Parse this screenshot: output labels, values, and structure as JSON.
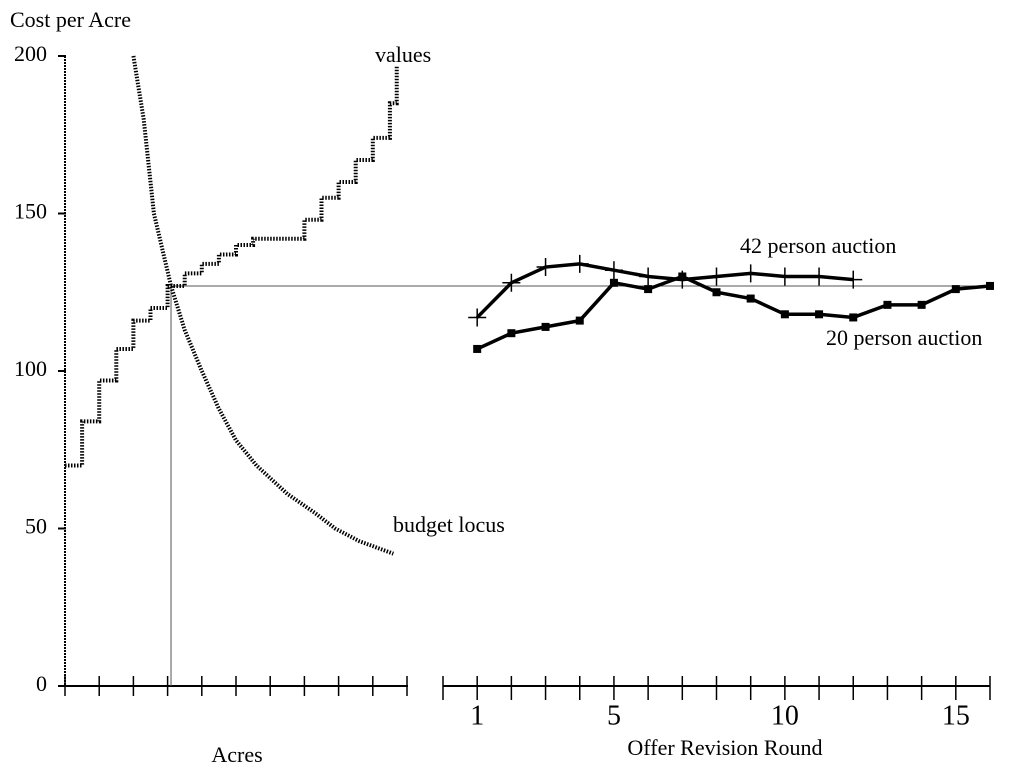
{
  "chart_data": [
    {
      "type": "line",
      "y_label": "Cost per Acre",
      "x_label": "Acres",
      "xlim": [
        0,
        10
      ],
      "xticks": [
        0,
        1,
        2,
        3,
        4,
        5,
        6,
        7,
        8,
        9,
        10
      ],
      "ylim": [
        0,
        200
      ],
      "yticks": [
        0,
        50,
        100,
        150,
        200
      ],
      "hline": 127,
      "vline": 3.1,
      "series": [
        {
          "name": "values",
          "color": "#000000",
          "step": true,
          "x": [
            0,
            0.5,
            1,
            1.5,
            2,
            2.5,
            3,
            3.5,
            4,
            4.5,
            5,
            5.5,
            6,
            6.5,
            7,
            7.5,
            8,
            8.5,
            9,
            9.5,
            9.7
          ],
          "values": [
            70,
            84,
            97,
            107,
            116,
            120,
            127,
            131,
            134,
            137,
            140,
            142,
            142,
            142,
            148,
            155,
            160,
            167,
            174,
            185,
            197
          ]
        },
        {
          "name": "budget locus",
          "color": "#000000",
          "step": false,
          "x": [
            2,
            2.3,
            2.6,
            3.1,
            3.5,
            4,
            4.5,
            5,
            5.6,
            6.5,
            7.3,
            7.9,
            8.6,
            9.6
          ],
          "values": [
            200,
            180,
            150,
            127,
            113,
            100,
            88,
            78,
            70,
            61,
            55,
            50,
            46,
            42
          ]
        }
      ]
    },
    {
      "type": "line",
      "x_label": "Offer Revision Round",
      "xlim": [
        0,
        16
      ],
      "xticks": [
        1,
        5,
        10,
        15
      ],
      "minor_xticks": [
        0,
        1,
        2,
        3,
        4,
        5,
        6,
        7,
        8,
        9,
        10,
        11,
        12,
        13,
        14,
        15,
        16
      ],
      "ylim": [
        0,
        200
      ],
      "series": [
        {
          "name": "42 person auction",
          "color": "#000000",
          "marker": "plus",
          "x": [
            1,
            2,
            3,
            4,
            5,
            6,
            7,
            8,
            9,
            10,
            11,
            12
          ],
          "values": [
            117,
            128,
            133,
            134,
            132,
            130,
            129,
            130,
            131,
            130,
            130,
            129
          ]
        },
        {
          "name": "20 person auction",
          "color": "#000000",
          "marker": "square",
          "x": [
            1,
            2,
            3,
            4,
            5,
            6,
            7,
            8,
            9,
            10,
            11,
            12,
            13,
            14,
            15,
            16
          ],
          "values": [
            107,
            112,
            114,
            116,
            128,
            126,
            130,
            125,
            123,
            118,
            118,
            117,
            121,
            121,
            126,
            127
          ]
        }
      ]
    }
  ]
}
